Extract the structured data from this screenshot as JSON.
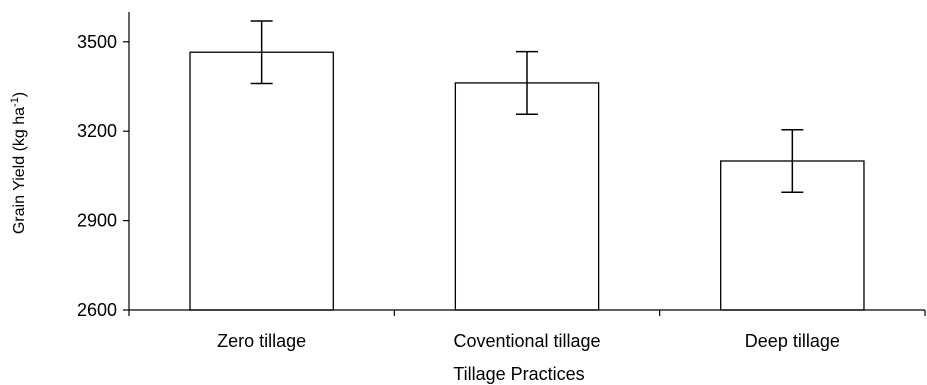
{
  "chart_data": {
    "type": "bar",
    "categories": [
      "Zero tillage",
      "Coventional tillage",
      "Deep tillage"
    ],
    "values": [
      3465,
      3362,
      3100
    ],
    "error": [
      105,
      105,
      105
    ],
    "ylim": [
      2600,
      3600
    ],
    "yticks": [
      "2600",
      "2900",
      "3200",
      "3500"
    ],
    "xlabel": "Tillage Practices",
    "ylabel": "Grain Yield (kg ha",
    "ylabel_sup": "-1",
    "ylabel_close": ")",
    "grid": false,
    "bar_fill": "#ffffff",
    "bar_stroke": "#000000"
  }
}
